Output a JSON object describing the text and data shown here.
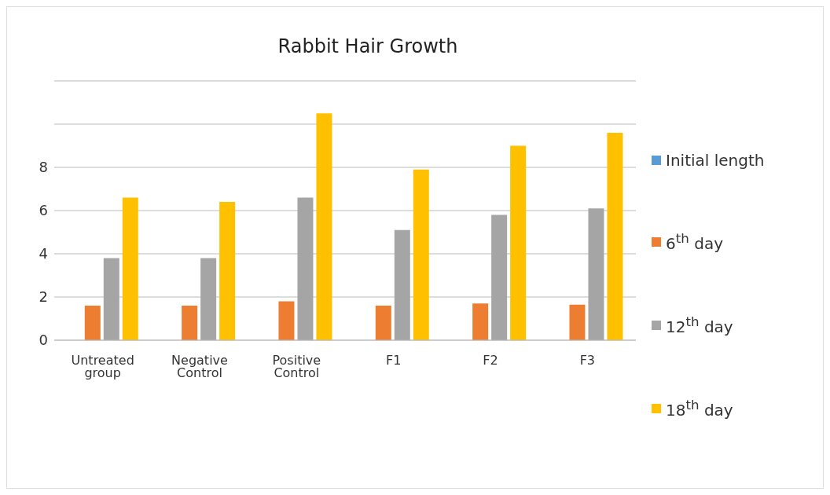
{
  "chart_data": {
    "type": "bar",
    "title": "Rabbit Hair Growth",
    "categories": [
      "Untreated group",
      "Negative Control",
      "Positive Control",
      "F1",
      "F2",
      "F3"
    ],
    "series": [
      {
        "name": "Initial length",
        "color": "#5b9bd5",
        "values": [
          0,
          0,
          0,
          0,
          0,
          0
        ]
      },
      {
        "name": "6$^{th}$ day",
        "color": "#ed7d31",
        "values": [
          1.6,
          1.6,
          1.8,
          1.6,
          1.7,
          1.65
        ]
      },
      {
        "name": "12$^{th}$ day",
        "color": "#a5a5a5",
        "values": [
          3.8,
          3.8,
          6.6,
          5.1,
          5.8,
          6.1
        ]
      },
      {
        "name": "18$^{th}$ day",
        "color": "#ffc000",
        "values": [
          6.6,
          6.4,
          10.5,
          7.9,
          9.0,
          9.6
        ]
      }
    ],
    "ylim": [
      0,
      12
    ],
    "yticks": [
      0,
      2,
      4,
      6,
      8,
      {
        "value": 10,
        "label": null
      },
      {
        "value": 12,
        "label": null
      }
    ],
    "grid": "y",
    "legend": "right"
  }
}
